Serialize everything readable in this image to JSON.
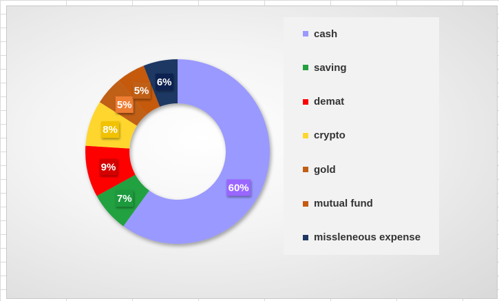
{
  "chart_data": {
    "type": "doughnut",
    "title": "",
    "categories": [
      "cash",
      "saving",
      "demat",
      "crypto",
      "gold",
      "mutual fund",
      "missleneous expense"
    ],
    "values": [
      60,
      7,
      9,
      8,
      5,
      5,
      6
    ],
    "labels": [
      "60%",
      "7%",
      "9%",
      "8%",
      "5%",
      "5%",
      "6%"
    ],
    "colors": [
      "#9999FF",
      "#23A140",
      "#FF0000",
      "#FFD62E",
      "#C05F14",
      "#C55A11",
      "#1F3864"
    ],
    "label_colors": [
      "#9966FF",
      "#1F9A3C",
      "#D40000",
      "#F2C200",
      "#ED7D31",
      "#C05F14",
      "#0E2451"
    ],
    "start_angle_deg": 0,
    "direction": "clockwise",
    "legend_position": "right",
    "grid": false
  }
}
